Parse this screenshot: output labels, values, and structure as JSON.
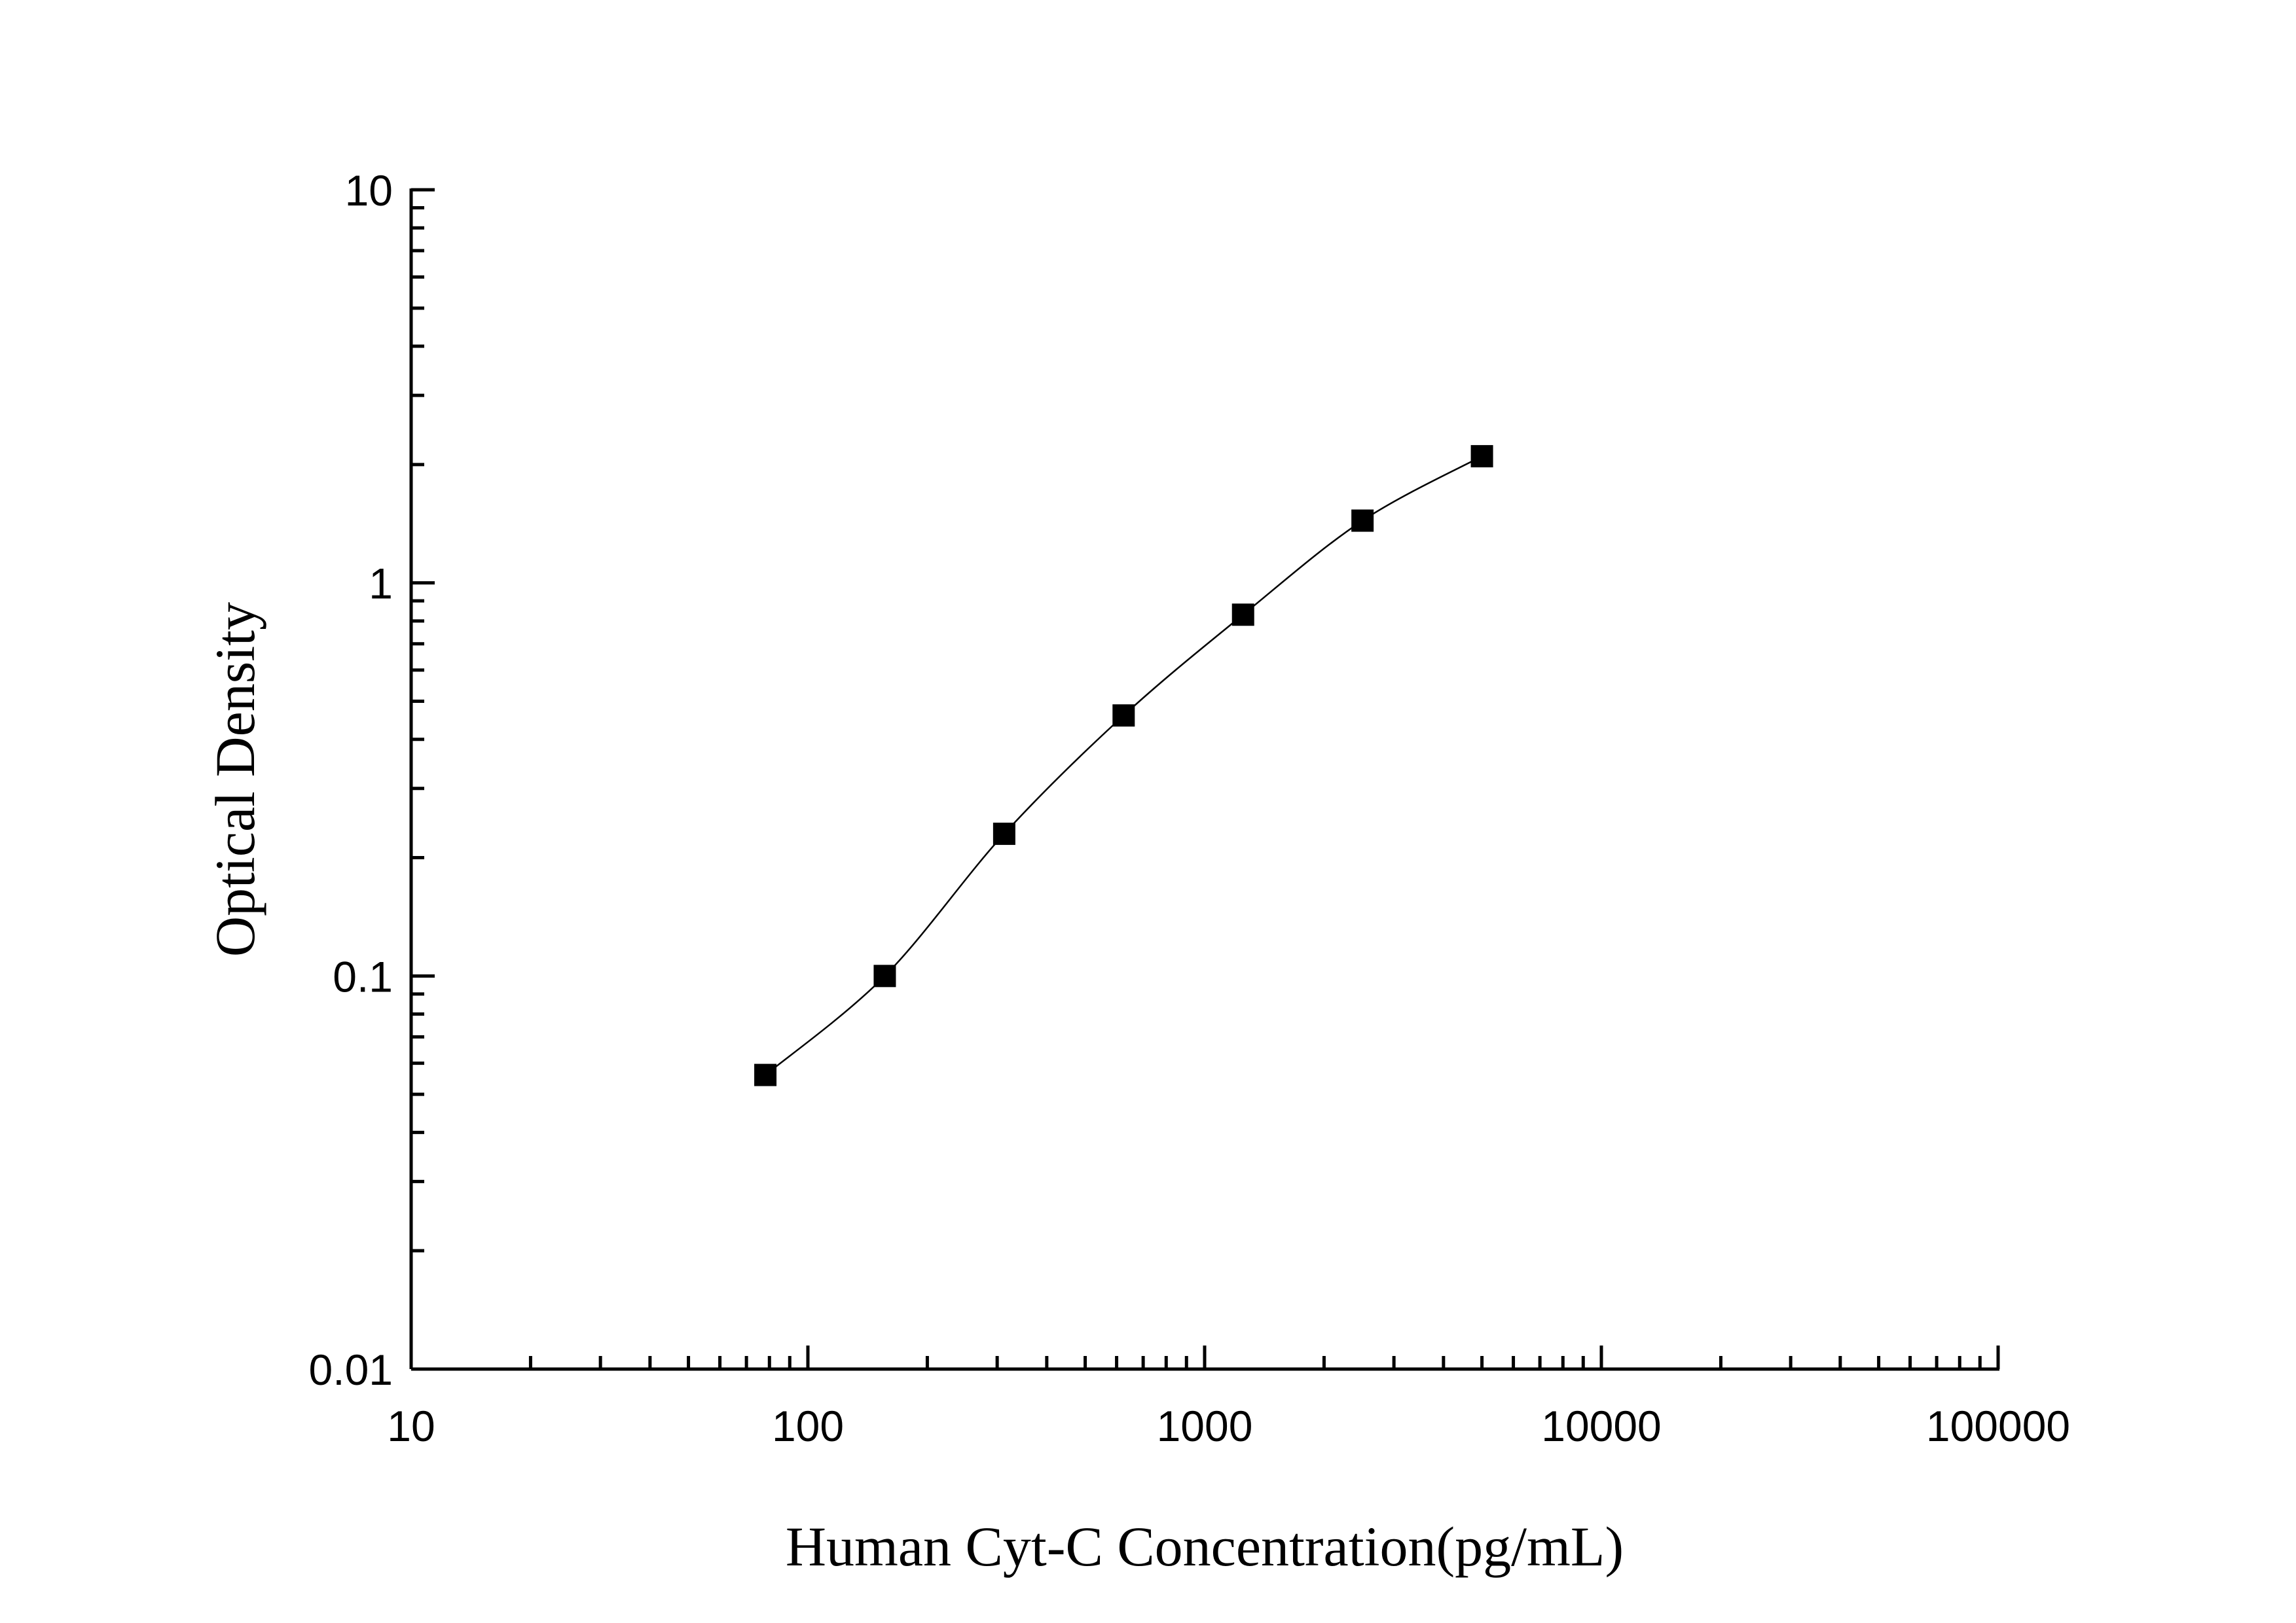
{
  "chart_data": {
    "type": "scatter",
    "xlabel": "Human Cyt-C Concentration(pg/mL)",
    "ylabel": "Optical Density",
    "x_scale": "log",
    "y_scale": "log",
    "xlim": [
      10,
      100000
    ],
    "ylim": [
      0.01,
      10
    ],
    "x_tick_labels": [
      "10",
      "100",
      "1000",
      "10000",
      "100000"
    ],
    "y_tick_labels": [
      "0.01",
      "0.1",
      "1",
      "10"
    ],
    "grid": false,
    "legend": "none",
    "marker": "square",
    "fit_line": "smooth curve through points",
    "colors": {
      "marker": "#000000",
      "line": "#000000",
      "axis": "#000000",
      "background": "#ffffff"
    },
    "series": [
      {
        "x": [
          78.13,
          156.25,
          312.5,
          625,
          1250,
          2500,
          5000
        ],
        "y": [
          0.056,
          0.1,
          0.23,
          0.46,
          0.83,
          1.44,
          2.1
        ]
      }
    ]
  }
}
